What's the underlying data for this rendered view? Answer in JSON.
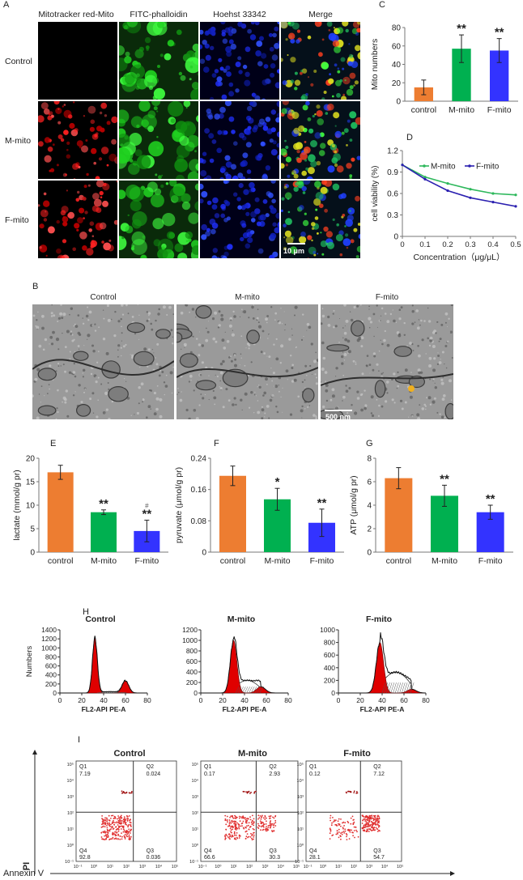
{
  "panels": {
    "A": "A",
    "B": "B",
    "C": "C",
    "D": "D",
    "E": "E",
    "F": "F",
    "G": "G",
    "H": "H",
    "I": "I"
  },
  "panel_a": {
    "columns": [
      "Mitotracker red-Mito",
      "FITC-phalloidin",
      "Hoehst 33342",
      "Merge"
    ],
    "rows": [
      "Control",
      "M-mito",
      "F-mito"
    ],
    "scale_bar": "10 μm"
  },
  "panel_b": {
    "labels": [
      "Control",
      "M-mito",
      "F-mito"
    ],
    "scale_bar": "500 nm"
  },
  "colors": {
    "control": "#ED7D31",
    "m_mito": "#00B050",
    "f_mito": "#3333FF",
    "d_m": "#2EB85C",
    "d_f": "#2B20B0",
    "flow_red": "#E00000",
    "dot_red": "#E03030"
  },
  "chart_data": [
    {
      "id": "C",
      "type": "bar",
      "categories": [
        "control",
        "M-mito",
        "F-mito"
      ],
      "values": [
        15,
        57,
        55
      ],
      "errors": [
        8,
        15,
        13
      ],
      "annotations": [
        "",
        "**",
        "**"
      ],
      "xlabel": "",
      "ylabel": "Mito numbers",
      "ylim": [
        0,
        80
      ],
      "yticks": [
        0,
        20,
        40,
        60,
        80
      ],
      "grid": false
    },
    {
      "id": "D",
      "type": "line",
      "x": [
        0,
        0.1,
        0.2,
        0.3,
        0.4,
        0.5
      ],
      "series": [
        {
          "name": "M-mito",
          "values": [
            1.0,
            0.83,
            0.74,
            0.66,
            0.6,
            0.58
          ]
        },
        {
          "name": "F-mito",
          "values": [
            1.0,
            0.8,
            0.64,
            0.54,
            0.48,
            0.42
          ]
        }
      ],
      "xlabel": "Concentration（μg/μL）",
      "ylabel": "cell viability (%)",
      "xlim": [
        0,
        0.5
      ],
      "xticks": [
        "0",
        "0.1",
        "0.2",
        "0.3",
        "0.4",
        "0.5"
      ],
      "ylim": [
        0,
        1.2
      ],
      "yticks": [
        "0",
        "0.3",
        "0.6",
        "0.9",
        "1.2"
      ],
      "legend": "top-right",
      "grid": false
    },
    {
      "id": "E",
      "type": "bar",
      "categories": [
        "control",
        "M-mito",
        "F-mito"
      ],
      "values": [
        17,
        8.5,
        4.5
      ],
      "errors": [
        1.5,
        0.5,
        2.3
      ],
      "annotations": [
        "",
        "**",
        "**"
      ],
      "annotations2": [
        "",
        "",
        "#"
      ],
      "ylabel": "lactate (mmol/g pr)",
      "ylim": [
        0,
        20
      ],
      "yticks": [
        "0",
        "5",
        "10",
        "15",
        "20"
      ]
    },
    {
      "id": "F",
      "type": "bar",
      "categories": [
        "control",
        "M-mito",
        "F-mito"
      ],
      "values": [
        0.195,
        0.135,
        0.075
      ],
      "errors": [
        0.025,
        0.028,
        0.035
      ],
      "annotations": [
        "",
        "*",
        "**"
      ],
      "ylabel": "pyruvate (μmol/g pr)",
      "ylim": [
        0,
        0.24
      ],
      "yticks": [
        "0",
        "0.08",
        "0.16",
        "0.24"
      ]
    },
    {
      "id": "G",
      "type": "bar",
      "categories": [
        "control",
        "M-mito",
        "F-mito"
      ],
      "values": [
        6.3,
        4.8,
        3.4
      ],
      "errors": [
        0.9,
        0.9,
        0.6
      ],
      "annotations": [
        "",
        "**",
        "**"
      ],
      "ylabel": "ATP (μmol/g pr)",
      "ylim": [
        0,
        8
      ],
      "yticks": [
        "0",
        "2",
        "4",
        "6",
        "8"
      ]
    },
    {
      "id": "H",
      "type": "area",
      "titles": [
        "Control",
        "M-mito",
        "F-mito"
      ],
      "ylabel": "Numbers",
      "xlabel": "FL2-API PE-A",
      "xticks": [
        "0",
        "20",
        "40",
        "60",
        "80"
      ],
      "yticks": [
        [
          "0",
          "200",
          "400",
          "600",
          "800",
          "1000",
          "1200",
          "1400"
        ],
        [
          "0",
          "200",
          "400",
          "600",
          "800",
          "1000",
          "1200"
        ],
        [
          "0",
          "200",
          "400",
          "600",
          "800",
          "1000"
        ]
      ],
      "ymax": [
        1400,
        1200,
        1000
      ],
      "g1_peak": [
        {
          "x": 32,
          "y": 1220,
          "sd": 2.2
        },
        {
          "x": 30,
          "y": 1000,
          "sd": 3.0
        },
        {
          "x": 38,
          "y": 800,
          "sd": 3.3
        }
      ],
      "g2_peak": [
        {
          "x": 60,
          "y": 270,
          "sd": 3.0
        },
        {
          "x": 55,
          "y": 120,
          "sd": 4.0
        },
        {
          "x": 67,
          "y": 60,
          "sd": 4.0
        }
      ],
      "s_level": [
        30,
        240,
        330
      ]
    },
    {
      "id": "I",
      "type": "scatter",
      "titles": [
        "Control",
        "M-mito",
        "F-mito"
      ],
      "ylabel": "PI",
      "xlabel": "Annexin V",
      "tick_labels": [
        "10⁻¹",
        "10⁰",
        "10¹",
        "10²",
        "10³",
        "10⁴",
        "10⁵"
      ],
      "quadrants": [
        {
          "Q1": "7.19",
          "Q2": "0.024",
          "Q3": "0.036",
          "Q4": "92.8"
        },
        {
          "Q1": "0.17",
          "Q2": "2.93",
          "Q3": "30.3",
          "Q4": "66.6"
        },
        {
          "Q1": "0.12",
          "Q2": "7.12",
          "Q3": "54.7",
          "Q4": "28.1"
        }
      ],
      "quadrant_names": [
        "Q1",
        "Q2",
        "Q3",
        "Q4"
      ]
    }
  ]
}
